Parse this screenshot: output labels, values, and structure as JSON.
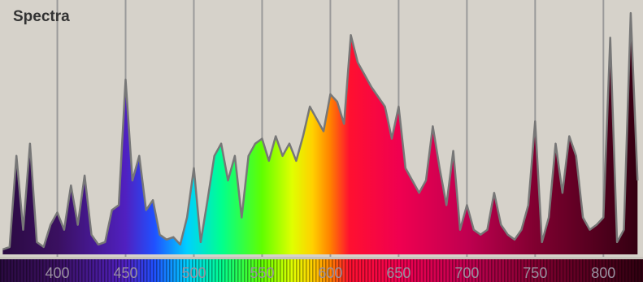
{
  "chart_data": {
    "type": "area",
    "title": "Spectra",
    "x": [
      360,
      365,
      370,
      375,
      380,
      385,
      390,
      395,
      400,
      405,
      410,
      415,
      420,
      425,
      430,
      435,
      440,
      445,
      450,
      455,
      460,
      465,
      470,
      475,
      480,
      485,
      490,
      495,
      500,
      505,
      510,
      515,
      520,
      525,
      530,
      535,
      540,
      545,
      550,
      555,
      560,
      565,
      570,
      575,
      580,
      585,
      590,
      595,
      600,
      605,
      610,
      615,
      620,
      625,
      630,
      635,
      640,
      645,
      650,
      655,
      660,
      665,
      670,
      675,
      680,
      685,
      690,
      695,
      700,
      705,
      710,
      715,
      720,
      725,
      730,
      735,
      740,
      745,
      750,
      755,
      760,
      765,
      770,
      775,
      780,
      785,
      790,
      795,
      800,
      805,
      810,
      815,
      820,
      825
    ],
    "values": [
      2,
      3,
      40,
      10,
      45,
      5,
      3,
      12,
      17,
      10,
      28,
      12,
      32,
      8,
      4,
      5,
      18,
      20,
      71,
      30,
      40,
      18,
      22,
      8,
      6,
      7,
      4,
      15,
      35,
      5,
      22,
      40,
      45,
      30,
      40,
      15,
      40,
      45,
      47,
      38,
      48,
      40,
      45,
      38,
      48,
      60,
      55,
      50,
      65,
      62,
      53,
      89,
      78,
      73,
      68,
      64,
      60,
      47,
      60,
      35,
      30,
      25,
      30,
      52,
      35,
      20,
      42,
      10,
      20,
      10,
      8,
      10,
      25,
      12,
      8,
      6,
      10,
      20,
      54,
      5,
      15,
      45,
      25,
      48,
      40,
      15,
      10,
      12,
      15,
      88,
      5,
      10,
      98,
      30
    ],
    "xlim": [
      358,
      829
    ],
    "ylim": [
      0,
      100
    ],
    "xticks": [
      400,
      450,
      500,
      550,
      600,
      650,
      700,
      750,
      800
    ],
    "grid": true,
    "line_color": "#777777",
    "background": "#d6d2ca",
    "spectrum_colors": [
      {
        "nm": 358,
        "color": "#2a0a40"
      },
      {
        "nm": 400,
        "color": "#3a1060"
      },
      {
        "nm": 450,
        "color": "#5020c0"
      },
      {
        "nm": 471,
        "color": "#2050ff"
      },
      {
        "nm": 495,
        "color": "#00d0ff"
      },
      {
        "nm": 520,
        "color": "#00ff90"
      },
      {
        "nm": 550,
        "color": "#60ff00"
      },
      {
        "nm": 572,
        "color": "#e0ff00"
      },
      {
        "nm": 587,
        "color": "#ffd000"
      },
      {
        "nm": 600,
        "color": "#ff8000"
      },
      {
        "nm": 614,
        "color": "#ff1030"
      },
      {
        "nm": 650,
        "color": "#f00050"
      },
      {
        "nm": 700,
        "color": "#c00050"
      },
      {
        "nm": 750,
        "color": "#800030"
      },
      {
        "nm": 829,
        "color": "#300010"
      }
    ]
  }
}
